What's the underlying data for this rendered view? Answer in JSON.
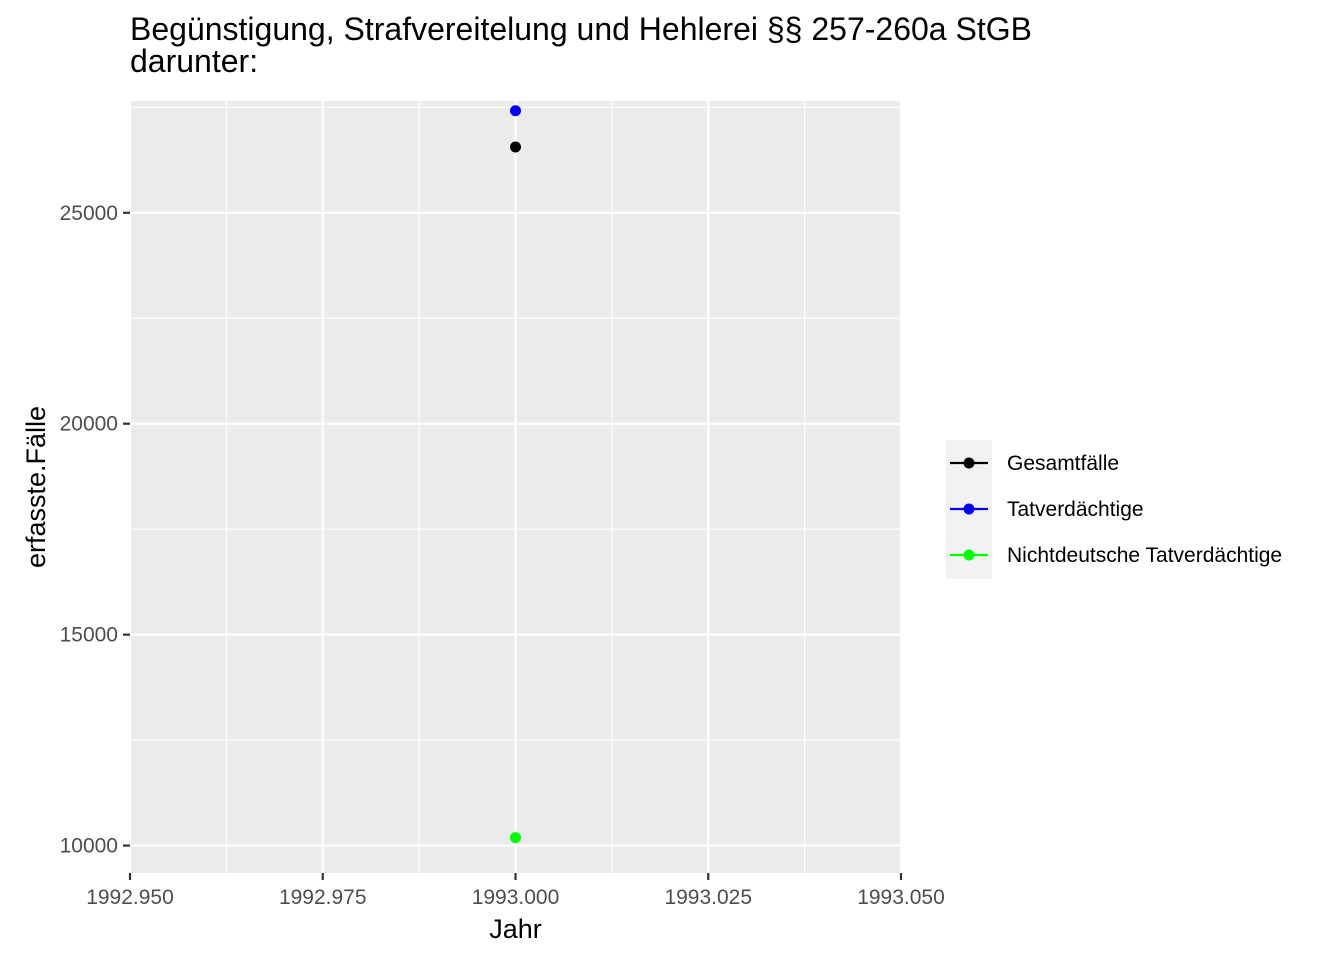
{
  "chart_data": {
    "type": "line",
    "title_lines": [
      "Begünstigung, Strafvereitelung und Hehlerei §§ 257-260a StGB",
      "darunter:"
    ],
    "xlabel": "Jahr",
    "ylabel": "erfasste.Fälle",
    "xlim": [
      1992.95,
      1993.05
    ],
    "ylim": [
      9350,
      27650
    ],
    "x_ticks": [
      1992.95,
      1992.975,
      1993.0,
      1993.025,
      1993.05
    ],
    "x_tick_labels": [
      "1992.950",
      "1992.975",
      "1993.000",
      "1993.025",
      "1993.050"
    ],
    "y_ticks": [
      10000,
      15000,
      20000,
      25000
    ],
    "y_tick_labels": [
      "10000",
      "15000",
      "20000",
      "25000"
    ],
    "grid": true,
    "legend_position": "right",
    "series": [
      {
        "name": "Gesamtfälle",
        "color": "#000000",
        "x": [
          1993.0
        ],
        "y": [
          26560
        ]
      },
      {
        "name": "Tatverdächtige",
        "color": "#0000ff",
        "x": [
          1993.0
        ],
        "y": [
          27420
        ]
      },
      {
        "name": "Nichtdeutsche Tatverdächtige",
        "color": "#00ff00",
        "x": [
          1993.0
        ],
        "y": [
          10190
        ]
      }
    ]
  }
}
